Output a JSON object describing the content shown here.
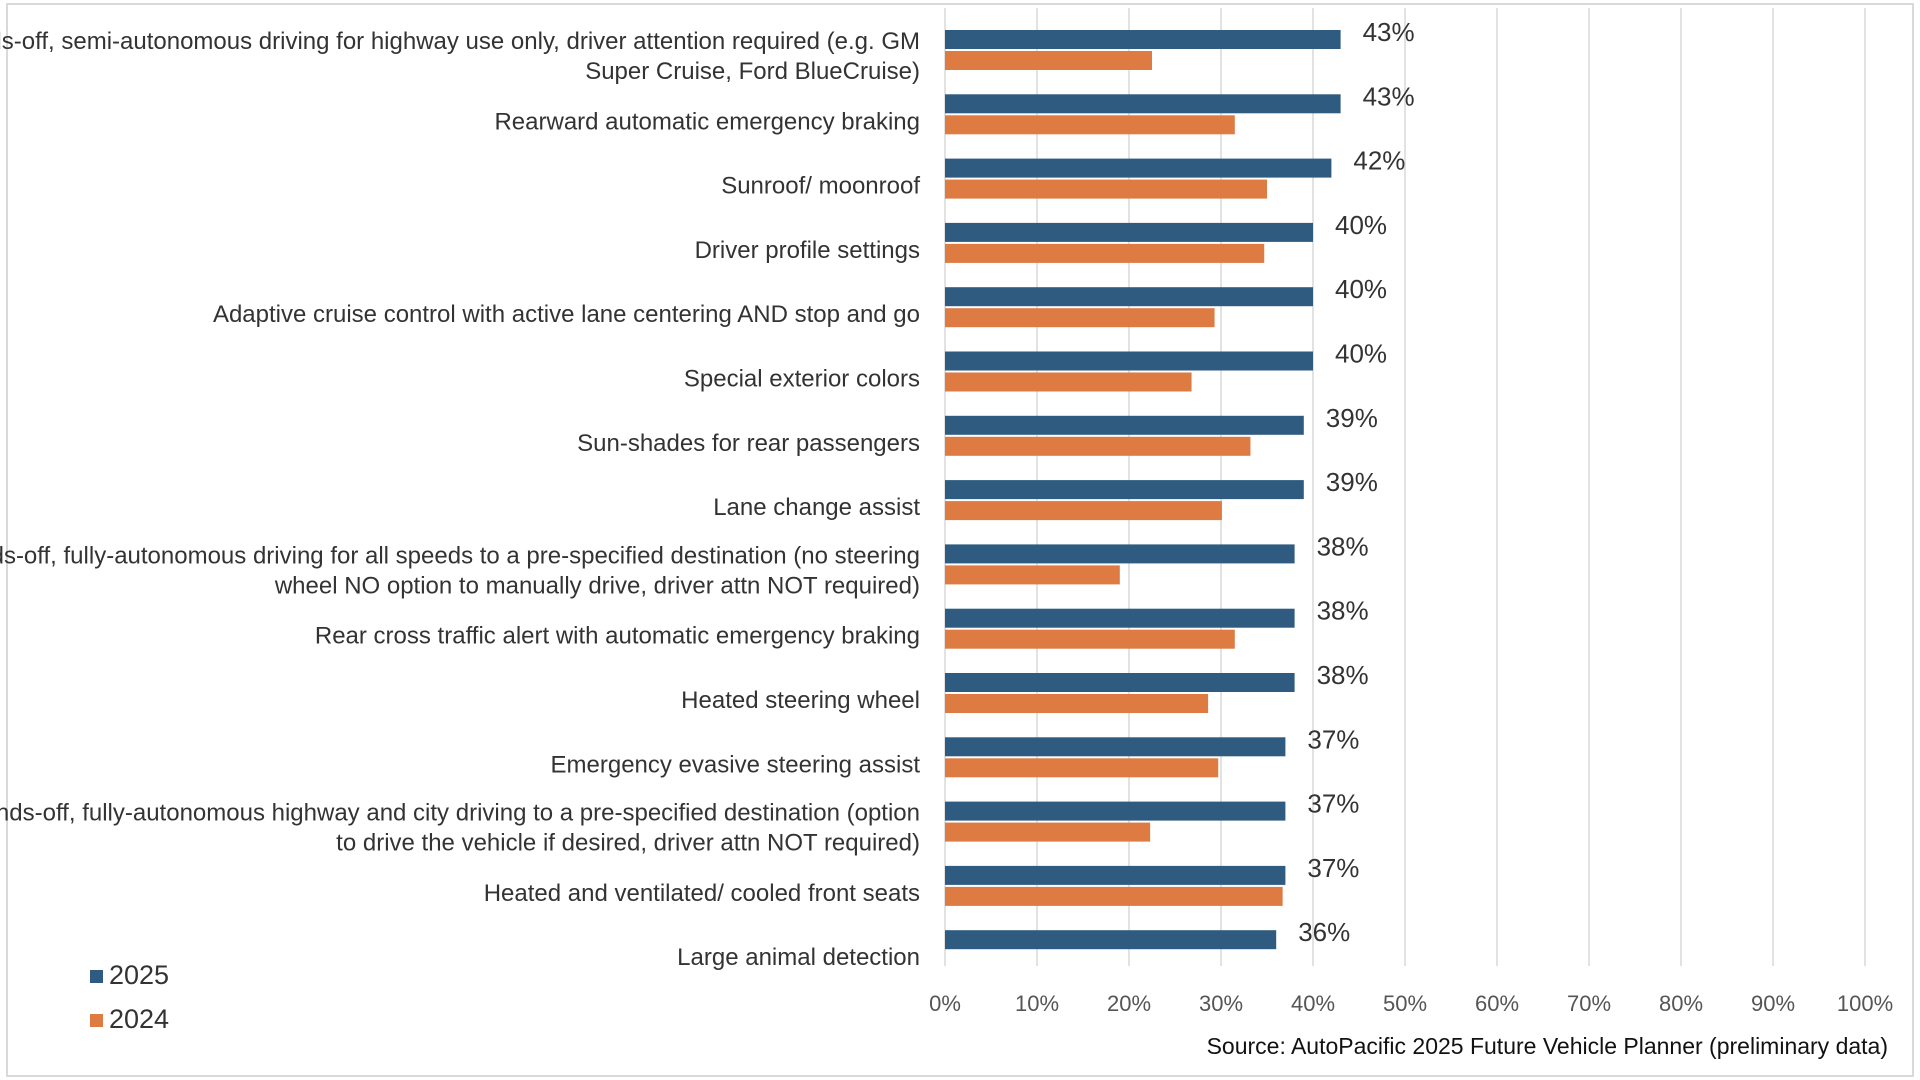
{
  "chart_data": {
    "type": "bar",
    "orientation": "horizontal",
    "categories": [
      "Hands-off, semi-autonomous driving for highway use only, driver attention required (e.g. GM|Super Cruise, Ford BlueCruise)",
      "Rearward automatic emergency braking",
      "Sunroof/ moonroof",
      "Driver profile settings",
      "Adaptive cruise control with active lane centering AND stop and go",
      "Special exterior colors",
      "Sun-shades for rear passengers",
      "Lane change assist",
      "Hands-off, fully-autonomous driving for all speeds to a pre-specified destination (no steering|wheel NO option to manually drive, driver attn NOT required)",
      "Rear cross traffic alert with automatic emergency braking",
      "Heated steering wheel",
      "Emergency evasive steering assist",
      "Hands-off, fully-autonomous highway and city driving to a pre-specified destination (option|to drive the vehicle if desired, driver attn NOT required)",
      "Heated and ventilated/ cooled front seats",
      "Large animal detection"
    ],
    "series": [
      {
        "name": "2025",
        "color": "#2e5b7f",
        "values": [
          43,
          43,
          42,
          40,
          40,
          40,
          39,
          39,
          38,
          38,
          38,
          37,
          37,
          37,
          36
        ],
        "data_labels": [
          "43%",
          "43%",
          "42%",
          "40%",
          "40%",
          "40%",
          "39%",
          "39%",
          "38%",
          "38%",
          "38%",
          "37%",
          "37%",
          "37%",
          "36%"
        ]
      },
      {
        "name": "2024",
        "color": "#dd7b42",
        "values": [
          22.5,
          31.5,
          35,
          34.7,
          29.3,
          26.8,
          33.2,
          30.1,
          19,
          31.5,
          28.6,
          29.7,
          22.3,
          36.7,
          null
        ]
      }
    ],
    "xlim": [
      0,
      100
    ],
    "xticks": [
      "0%",
      "10%",
      "20%",
      "30%",
      "40%",
      "50%",
      "60%",
      "70%",
      "80%",
      "90%",
      "100%"
    ],
    "grid": "vertical",
    "legend": "bottom-left",
    "source": "Source: AutoPacific 2025 Future Vehicle Planner (preliminary data)"
  }
}
